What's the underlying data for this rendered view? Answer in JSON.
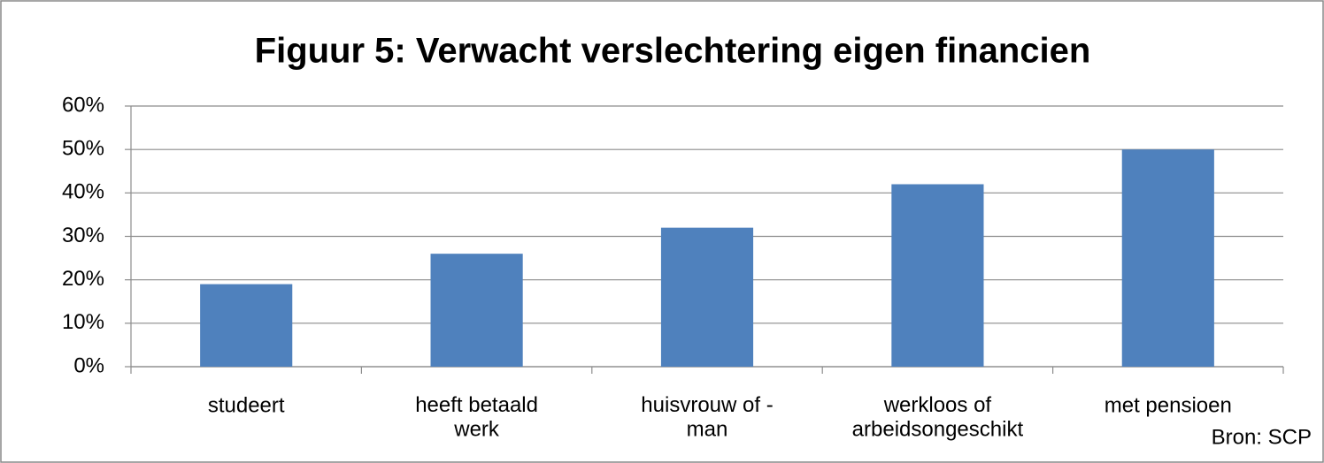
{
  "chart_data": {
    "type": "bar",
    "title": "Figuur 5: Verwacht verslechtering eigen financien",
    "categories": [
      "studeert",
      "heeft betaald\nwerk",
      "huisvrouw of -\nman",
      "werkloos of\narbeidsongeschikt",
      "met pensioen"
    ],
    "values": [
      19,
      26,
      32,
      42,
      50
    ],
    "color": "#4f81bd",
    "ylim": [
      0,
      60
    ],
    "yticks": [
      {
        "value": 0,
        "label": "0%"
      },
      {
        "value": 10,
        "label": "10%"
      },
      {
        "value": 20,
        "label": "20%"
      },
      {
        "value": 30,
        "label": "30%"
      },
      {
        "value": 40,
        "label": "40%"
      },
      {
        "value": 50,
        "label": "50%"
      },
      {
        "value": 60,
        "label": "60%"
      }
    ],
    "grid": true,
    "source": "Bron: SCP"
  }
}
